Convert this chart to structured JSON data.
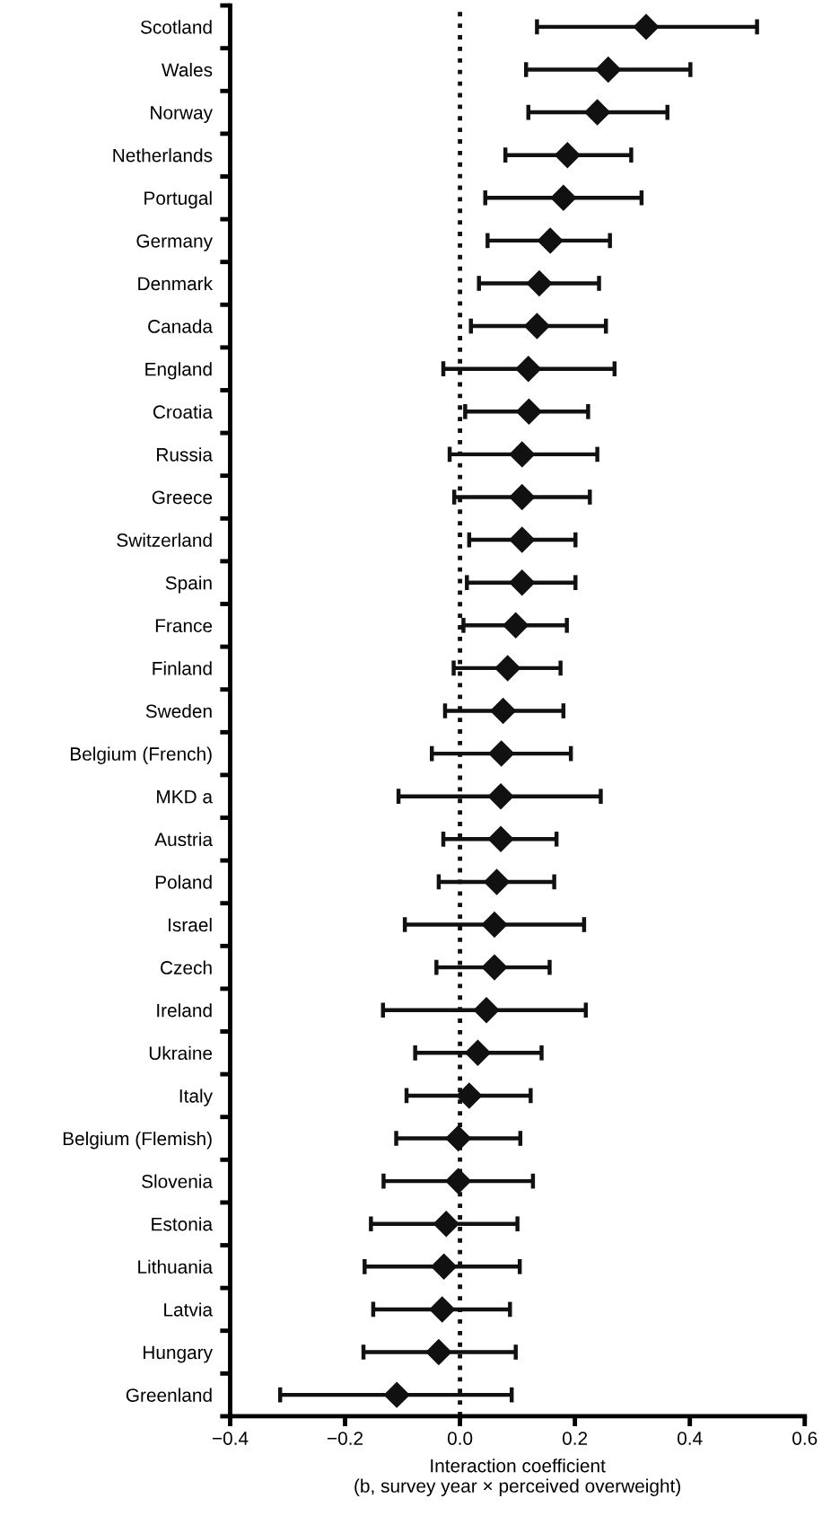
{
  "chart_data": {
    "type": "scatter",
    "orientation": "horizontal",
    "marker": "diamond",
    "grid": false,
    "legend": false,
    "xlabel": "Interaction coefficient\n(b, survey year × perceived overweight)",
    "categories": [
      "Scotland",
      "Wales",
      "Norway",
      "Netherlands",
      "Portugal",
      "Germany",
      "Denmark",
      "Canada",
      "England",
      "Croatia",
      "Russia",
      "Greece",
      "Switzerland",
      "Spain",
      "France",
      "Finland",
      "Sweden",
      "Belgium (French)",
      "MKD a",
      "Austria",
      "Poland",
      "Israel",
      "Czech",
      "Ireland",
      "Ukraine",
      "Italy",
      "Belgium (Flemish)",
      "Slovenia",
      "Estonia",
      "Lithuania",
      "Latvia",
      "Hungary",
      "Greenland"
    ],
    "values": [
      0.324,
      0.258,
      0.239,
      0.187,
      0.18,
      0.157,
      0.138,
      0.134,
      0.119,
      0.12,
      0.108,
      0.108,
      0.108,
      0.108,
      0.097,
      0.083,
      0.075,
      0.072,
      0.071,
      0.071,
      0.064,
      0.06,
      0.06,
      0.046,
      0.031,
      0.016,
      -0.003,
      -0.003,
      -0.024,
      -0.028,
      -0.031,
      -0.037,
      -0.11
    ],
    "errors": [
      [
        0.134,
        0.517
      ],
      [
        0.115,
        0.401
      ],
      [
        0.119,
        0.361
      ],
      [
        0.079,
        0.298
      ],
      [
        0.044,
        0.316
      ],
      [
        0.048,
        0.261
      ],
      [
        0.033,
        0.242
      ],
      [
        0.019,
        0.254
      ],
      [
        -0.029,
        0.269
      ],
      [
        0.009,
        0.223
      ],
      [
        -0.018,
        0.239
      ],
      [
        -0.01,
        0.226
      ],
      [
        0.016,
        0.201
      ],
      [
        0.012,
        0.201
      ],
      [
        0.006,
        0.186
      ],
      [
        -0.011,
        0.175
      ],
      [
        -0.026,
        0.18
      ],
      [
        -0.049,
        0.193
      ],
      [
        -0.107,
        0.245
      ],
      [
        -0.029,
        0.168
      ],
      [
        -0.037,
        0.164
      ],
      [
        -0.096,
        0.216
      ],
      [
        -0.041,
        0.156
      ],
      [
        -0.134,
        0.219
      ],
      [
        -0.078,
        0.142
      ],
      [
        -0.093,
        0.123
      ],
      [
        -0.111,
        0.105
      ],
      [
        -0.133,
        0.127
      ],
      [
        -0.155,
        0.1
      ],
      [
        -0.166,
        0.104
      ],
      [
        -0.151,
        0.087
      ],
      [
        -0.168,
        0.097
      ],
      [
        -0.313,
        0.09
      ]
    ],
    "color": "#111111",
    "xlim": [
      -0.4,
      0.6
    ],
    "xticks": [
      {
        "value": -0.4,
        "label": "−0.4"
      },
      {
        "value": -0.2,
        "label": "−0.2"
      },
      {
        "value": 0,
        "label": "0.0"
      },
      0.2,
      0.4,
      0.6
    ],
    "ref_lines": [
      {
        "axis": "x",
        "value": 0,
        "line_style": "dotted",
        "color": "#111111"
      }
    ]
  }
}
